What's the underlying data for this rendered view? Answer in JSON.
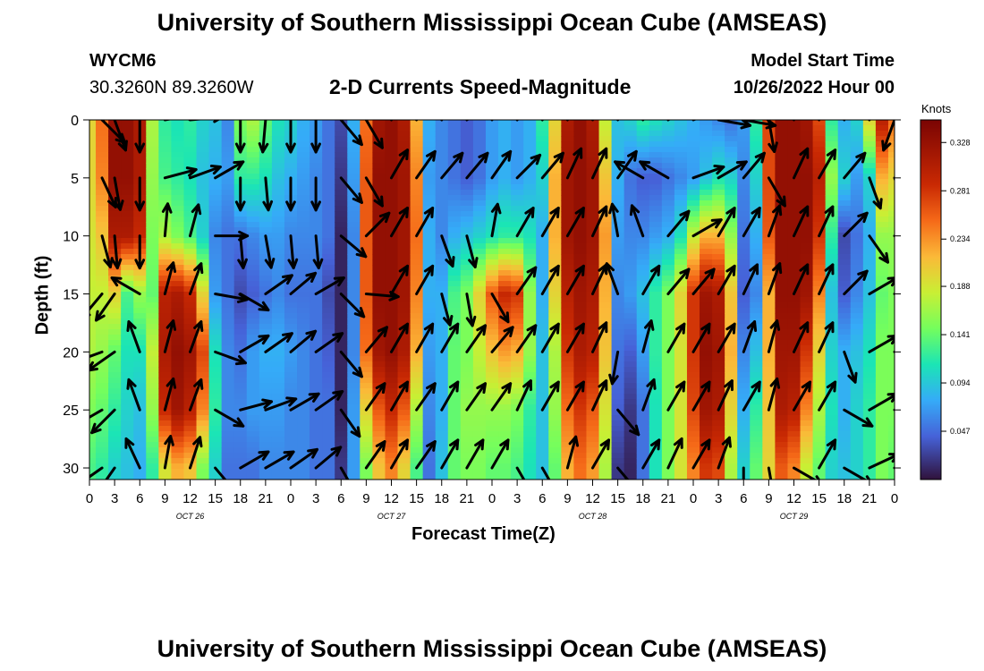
{
  "header": {
    "title": "University of Southern Mississippi Ocean Cube (AMSEAS)",
    "station_id": "WYCM6",
    "station_coords": "30.3260N  89.3260W",
    "subtitle": "2-D Currents Speed-Magnitude",
    "model_start_label": "Model Start Time",
    "model_start_value": "10/26/2022 Hour 00"
  },
  "footer": {
    "title": "University of Southern Mississippi Ocean Cube (AMSEAS)"
  },
  "chart_data": {
    "type": "heatmap",
    "title": "2-D Currents Speed-Magnitude",
    "xlabel": "Forecast Time(Z)",
    "ylabel": "Depth (ft)",
    "x_unit": "hours from model start",
    "xlim": [
      0,
      96
    ],
    "ylim": [
      0,
      31
    ],
    "y_reversed": true,
    "xticks": [
      0,
      3,
      6,
      9,
      12,
      15,
      18,
      21,
      24,
      27,
      30,
      33,
      36,
      39,
      42,
      45,
      48,
      51,
      54,
      57,
      60,
      63,
      66,
      69,
      72,
      75,
      78,
      81,
      84,
      87,
      90,
      93,
      96
    ],
    "xtick_labels": [
      "0",
      "3",
      "6",
      "9",
      "12",
      "15",
      "18",
      "21",
      "0",
      "3",
      "6",
      "9",
      "12",
      "15",
      "18",
      "21",
      "0",
      "3",
      "6",
      "9",
      "12",
      "15",
      "18",
      "21",
      "0",
      "3",
      "6",
      "9",
      "12",
      "15",
      "18",
      "21",
      "0"
    ],
    "day_labels": [
      {
        "label": "OCT 26",
        "x": 12
      },
      {
        "label": "OCT 27",
        "x": 36
      },
      {
        "label": "OCT 28",
        "x": 60
      },
      {
        "label": "OCT 29",
        "x": 84
      }
    ],
    "yticks": [
      0,
      5,
      10,
      15,
      20,
      25,
      30
    ],
    "ytick_labels": [
      "0",
      "5",
      "10",
      "15",
      "20",
      "25",
      "30"
    ],
    "colorbar": {
      "title": "Knots",
      "ticks": [
        0.328,
        0.281,
        0.234,
        0.188,
        0.141,
        0.094,
        0.047
      ],
      "tick_labels": [
        "0.328",
        "0.281",
        "0.234",
        "0.188",
        "0.141",
        "0.094",
        "0.047"
      ],
      "range": [
        0.0,
        0.35
      ]
    },
    "speed_columns": [
      {
        "x": 0,
        "v": [
          0.2,
          0.2,
          0.19,
          0.18,
          0.17,
          0.15,
          0.13
        ]
      },
      {
        "x": 1.5,
        "v": [
          0.25,
          0.24,
          0.21,
          0.18,
          0.16,
          0.14,
          0.12
        ]
      },
      {
        "x": 3,
        "v": [
          0.33,
          0.33,
          0.31,
          0.2,
          0.14,
          0.12,
          0.1
        ]
      },
      {
        "x": 4.5,
        "v": [
          0.33,
          0.33,
          0.31,
          0.13,
          0.11,
          0.1,
          0.09
        ]
      },
      {
        "x": 6,
        "v": [
          0.31,
          0.31,
          0.29,
          0.16,
          0.11,
          0.09,
          0.08
        ]
      },
      {
        "x": 7.5,
        "v": [
          0.17,
          0.16,
          0.15,
          0.14,
          0.18,
          0.16,
          0.12
        ]
      },
      {
        "x": 9,
        "v": [
          0.12,
          0.13,
          0.17,
          0.3,
          0.31,
          0.29,
          0.19
        ]
      },
      {
        "x": 10.5,
        "v": [
          0.11,
          0.12,
          0.15,
          0.31,
          0.33,
          0.32,
          0.22
        ]
      },
      {
        "x": 12,
        "v": [
          0.12,
          0.11,
          0.13,
          0.29,
          0.32,
          0.3,
          0.21
        ]
      },
      {
        "x": 13.5,
        "v": [
          0.1,
          0.09,
          0.1,
          0.2,
          0.27,
          0.24,
          0.15
        ]
      },
      {
        "x": 15,
        "v": [
          0.09,
          0.08,
          0.06,
          0.07,
          0.11,
          0.12,
          0.1
        ]
      },
      {
        "x": 16.5,
        "v": [
          0.06,
          0.07,
          0.05,
          0.05,
          0.06,
          0.06,
          0.05
        ]
      },
      {
        "x": 18,
        "v": [
          0.15,
          0.12,
          0.05,
          0.03,
          0.05,
          0.06,
          0.05
        ]
      },
      {
        "x": 19.5,
        "v": [
          0.17,
          0.12,
          0.06,
          0.04,
          0.07,
          0.07,
          0.05
        ]
      },
      {
        "x": 21,
        "v": [
          0.14,
          0.11,
          0.07,
          0.05,
          0.08,
          0.07,
          0.06
        ]
      },
      {
        "x": 22.5,
        "v": [
          0.11,
          0.09,
          0.07,
          0.06,
          0.08,
          0.07,
          0.06
        ]
      },
      {
        "x": 24,
        "v": [
          0.1,
          0.08,
          0.06,
          0.05,
          0.07,
          0.06,
          0.06
        ]
      },
      {
        "x": 25.5,
        "v": [
          0.08,
          0.07,
          0.06,
          0.05,
          0.06,
          0.06,
          0.06
        ]
      },
      {
        "x": 27,
        "v": [
          0.07,
          0.06,
          0.06,
          0.05,
          0.05,
          0.05,
          0.05
        ]
      },
      {
        "x": 28.5,
        "v": [
          0.05,
          0.05,
          0.05,
          0.03,
          0.04,
          0.05,
          0.05
        ]
      },
      {
        "x": 30,
        "v": [
          0.03,
          0.02,
          0.01,
          0.01,
          0.01,
          0.01,
          0.02
        ]
      },
      {
        "x": 31.5,
        "v": [
          0.08,
          0.07,
          0.06,
          0.06,
          0.06,
          0.07,
          0.07
        ]
      },
      {
        "x": 33,
        "v": [
          0.25,
          0.26,
          0.26,
          0.26,
          0.25,
          0.2,
          0.15
        ]
      },
      {
        "x": 34.5,
        "v": [
          0.32,
          0.33,
          0.33,
          0.33,
          0.32,
          0.26,
          0.21
        ]
      },
      {
        "x": 36,
        "v": [
          0.33,
          0.33,
          0.33,
          0.33,
          0.33,
          0.29,
          0.24
        ]
      },
      {
        "x": 37.5,
        "v": [
          0.31,
          0.32,
          0.32,
          0.32,
          0.31,
          0.26,
          0.2
        ]
      },
      {
        "x": 39,
        "v": [
          0.22,
          0.24,
          0.25,
          0.24,
          0.22,
          0.17,
          0.13
        ]
      },
      {
        "x": 40.5,
        "v": [
          0.08,
          0.07,
          0.08,
          0.08,
          0.07,
          0.06,
          0.05
        ]
      },
      {
        "x": 42,
        "v": [
          0.06,
          0.06,
          0.06,
          0.08,
          0.08,
          0.08,
          0.09
        ]
      },
      {
        "x": 43.5,
        "v": [
          0.05,
          0.05,
          0.08,
          0.13,
          0.14,
          0.14,
          0.14
        ]
      },
      {
        "x": 45,
        "v": [
          0.04,
          0.04,
          0.09,
          0.15,
          0.15,
          0.16,
          0.15
        ]
      },
      {
        "x": 46.5,
        "v": [
          0.05,
          0.05,
          0.1,
          0.2,
          0.18,
          0.16,
          0.15
        ]
      },
      {
        "x": 48,
        "v": [
          0.07,
          0.07,
          0.11,
          0.26,
          0.21,
          0.16,
          0.14
        ]
      },
      {
        "x": 49.5,
        "v": [
          0.08,
          0.08,
          0.12,
          0.29,
          0.23,
          0.16,
          0.14
        ]
      },
      {
        "x": 51,
        "v": [
          0.07,
          0.07,
          0.12,
          0.28,
          0.22,
          0.15,
          0.13
        ]
      },
      {
        "x": 52.5,
        "v": [
          0.08,
          0.08,
          0.11,
          0.16,
          0.16,
          0.12,
          0.11
        ]
      },
      {
        "x": 54,
        "v": [
          0.12,
          0.1,
          0.08,
          0.08,
          0.09,
          0.09,
          0.09
        ]
      },
      {
        "x": 55.5,
        "v": [
          0.2,
          0.22,
          0.22,
          0.2,
          0.17,
          0.16,
          0.14
        ]
      },
      {
        "x": 57,
        "v": [
          0.31,
          0.32,
          0.32,
          0.3,
          0.28,
          0.25,
          0.22
        ]
      },
      {
        "x": 58.5,
        "v": [
          0.33,
          0.33,
          0.33,
          0.32,
          0.31,
          0.28,
          0.25
        ]
      },
      {
        "x": 60,
        "v": [
          0.31,
          0.32,
          0.32,
          0.31,
          0.3,
          0.26,
          0.23
        ]
      },
      {
        "x": 61.5,
        "v": [
          0.18,
          0.21,
          0.23,
          0.22,
          0.21,
          0.19,
          0.17
        ]
      },
      {
        "x": 63,
        "v": [
          0.09,
          0.08,
          0.07,
          0.06,
          0.05,
          0.04,
          0.02
        ]
      },
      {
        "x": 64.5,
        "v": [
          0.1,
          0.05,
          0.06,
          0.07,
          0.04,
          0.02,
          0.01
        ]
      },
      {
        "x": 66,
        "v": [
          0.12,
          0.04,
          0.06,
          0.09,
          0.07,
          0.05,
          0.05
        ]
      },
      {
        "x": 67.5,
        "v": [
          0.11,
          0.04,
          0.07,
          0.12,
          0.12,
          0.11,
          0.11
        ]
      },
      {
        "x": 69,
        "v": [
          0.1,
          0.05,
          0.08,
          0.15,
          0.15,
          0.15,
          0.15
        ]
      },
      {
        "x": 70.5,
        "v": [
          0.09,
          0.06,
          0.11,
          0.2,
          0.19,
          0.19,
          0.19
        ]
      },
      {
        "x": 72,
        "v": [
          0.08,
          0.07,
          0.18,
          0.28,
          0.28,
          0.27,
          0.24
        ]
      },
      {
        "x": 73.5,
        "v": [
          0.07,
          0.09,
          0.22,
          0.32,
          0.33,
          0.32,
          0.28
        ]
      },
      {
        "x": 75,
        "v": [
          0.06,
          0.11,
          0.22,
          0.31,
          0.32,
          0.31,
          0.27
        ]
      },
      {
        "x": 76.5,
        "v": [
          0.05,
          0.1,
          0.16,
          0.21,
          0.22,
          0.2,
          0.17
        ]
      },
      {
        "x": 78,
        "v": [
          0.07,
          0.06,
          0.05,
          0.04,
          0.06,
          0.08,
          0.1
        ]
      },
      {
        "x": 79.5,
        "v": [
          0.12,
          0.1,
          0.08,
          0.06,
          0.09,
          0.12,
          0.14
        ]
      },
      {
        "x": 81,
        "v": [
          0.27,
          0.27,
          0.26,
          0.22,
          0.22,
          0.21,
          0.2
        ]
      },
      {
        "x": 82.5,
        "v": [
          0.33,
          0.33,
          0.33,
          0.33,
          0.32,
          0.31,
          0.26
        ]
      },
      {
        "x": 84,
        "v": [
          0.33,
          0.33,
          0.33,
          0.33,
          0.32,
          0.3,
          0.24
        ]
      },
      {
        "x": 85.5,
        "v": [
          0.32,
          0.33,
          0.33,
          0.32,
          0.28,
          0.24,
          0.18
        ]
      },
      {
        "x": 87,
        "v": [
          0.27,
          0.3,
          0.28,
          0.24,
          0.2,
          0.17,
          0.14
        ]
      },
      {
        "x": 88.5,
        "v": [
          0.12,
          0.16,
          0.12,
          0.09,
          0.1,
          0.11,
          0.1
        ]
      },
      {
        "x": 90,
        "v": [
          0.08,
          0.1,
          0.03,
          0.04,
          0.08,
          0.08,
          0.09
        ]
      },
      {
        "x": 91.5,
        "v": [
          0.1,
          0.07,
          0.05,
          0.06,
          0.09,
          0.1,
          0.1
        ]
      },
      {
        "x": 93,
        "v": [
          0.2,
          0.1,
          0.08,
          0.09,
          0.11,
          0.12,
          0.12
        ]
      },
      {
        "x": 94.5,
        "v": [
          0.3,
          0.22,
          0.16,
          0.14,
          0.15,
          0.15,
          0.15
        ]
      },
      {
        "x": 96,
        "v": [
          0.25,
          0.2,
          0.16,
          0.15,
          0.15,
          0.15,
          0.14
        ]
      }
    ],
    "vector_depths_ft": [
      0,
      5,
      10,
      15,
      20,
      25,
      30
    ],
    "vector_directions_deg": [
      {
        "x": 1.5,
        "d": [
          135,
          155,
          165,
          220,
          250,
          240,
          235
        ]
      },
      {
        "x": 3,
        "d": [
          160,
          170,
          175,
          215,
          235,
          225,
          215
        ]
      },
      {
        "x": 6,
        "d": [
          180,
          180,
          180,
          300,
          340,
          340,
          335
        ]
      },
      {
        "x": 9,
        "d": [
          80,
          75,
          5,
          15,
          15,
          15,
          10
        ]
      },
      {
        "x": 12,
        "d": [
          85,
          70,
          15,
          20,
          20,
          20,
          18
        ]
      },
      {
        "x": 15,
        "d": [
          60,
          60,
          90,
          100,
          110,
          120,
          140
        ]
      },
      {
        "x": 18,
        "d": [
          180,
          180,
          175,
          120,
          60,
          75,
          60
        ]
      },
      {
        "x": 21,
        "d": [
          185,
          175,
          170,
          55,
          55,
          70,
          60
        ]
      },
      {
        "x": 24,
        "d": [
          180,
          180,
          175,
          50,
          50,
          60,
          55
        ]
      },
      {
        "x": 27,
        "d": [
          180,
          180,
          175,
          60,
          55,
          55,
          50
        ]
      },
      {
        "x": 30,
        "d": [
          140,
          140,
          130,
          135,
          140,
          145,
          150
        ]
      },
      {
        "x": 33,
        "d": [
          150,
          150,
          45,
          95,
          40,
          35,
          35
        ]
      },
      {
        "x": 36,
        "d": [
          40,
          30,
          30,
          30,
          30,
          30,
          30
        ]
      },
      {
        "x": 39,
        "d": [
          35,
          35,
          30,
          30,
          30,
          35,
          35
        ]
      },
      {
        "x": 42,
        "d": [
          40,
          40,
          160,
          165,
          30,
          30,
          30
        ]
      },
      {
        "x": 45,
        "d": [
          60,
          40,
          165,
          170,
          35,
          35,
          30
        ]
      },
      {
        "x": 48,
        "d": [
          45,
          35,
          10,
          150,
          40,
          35,
          30
        ]
      },
      {
        "x": 51,
        "d": [
          40,
          45,
          30,
          35,
          35,
          25,
          150
        ]
      },
      {
        "x": 54,
        "d": [
          40,
          40,
          30,
          30,
          30,
          30,
          150
        ]
      },
      {
        "x": 57,
        "d": [
          30,
          25,
          30,
          30,
          30,
          30,
          15
        ]
      },
      {
        "x": 60,
        "d": [
          25,
          25,
          25,
          25,
          25,
          25,
          30
        ]
      },
      {
        "x": 63,
        "d": [
          45,
          35,
          350,
          340,
          190,
          140,
          140
        ]
      },
      {
        "x": 66,
        "d": [
          45,
          300,
          340,
          30,
          15,
          20,
          30
        ]
      },
      {
        "x": 69,
        "d": [
          60,
          300,
          40,
          40,
          30,
          30,
          25
        ]
      },
      {
        "x": 72,
        "d": [
          70,
          70,
          60,
          40,
          30,
          30,
          30
        ]
      },
      {
        "x": 75,
        "d": [
          100,
          60,
          30,
          30,
          30,
          25,
          20
        ]
      },
      {
        "x": 78,
        "d": [
          100,
          40,
          30,
          25,
          20,
          30,
          180
        ]
      },
      {
        "x": 81,
        "d": [
          170,
          150,
          20,
          20,
          15,
          15,
          170
        ]
      },
      {
        "x": 84,
        "d": [
          20,
          25,
          25,
          25,
          25,
          30,
          120
        ]
      },
      {
        "x": 87,
        "d": [
          30,
          30,
          25,
          25,
          25,
          30,
          30
        ]
      },
      {
        "x": 90,
        "d": [
          30,
          40,
          45,
          45,
          160,
          120,
          120
        ]
      },
      {
        "x": 93,
        "d": [
          35,
          160,
          145,
          60,
          60,
          60,
          65
        ]
      },
      {
        "x": 96,
        "d": [
          200,
          160,
          50,
          60,
          60,
          55,
          55
        ]
      }
    ]
  }
}
